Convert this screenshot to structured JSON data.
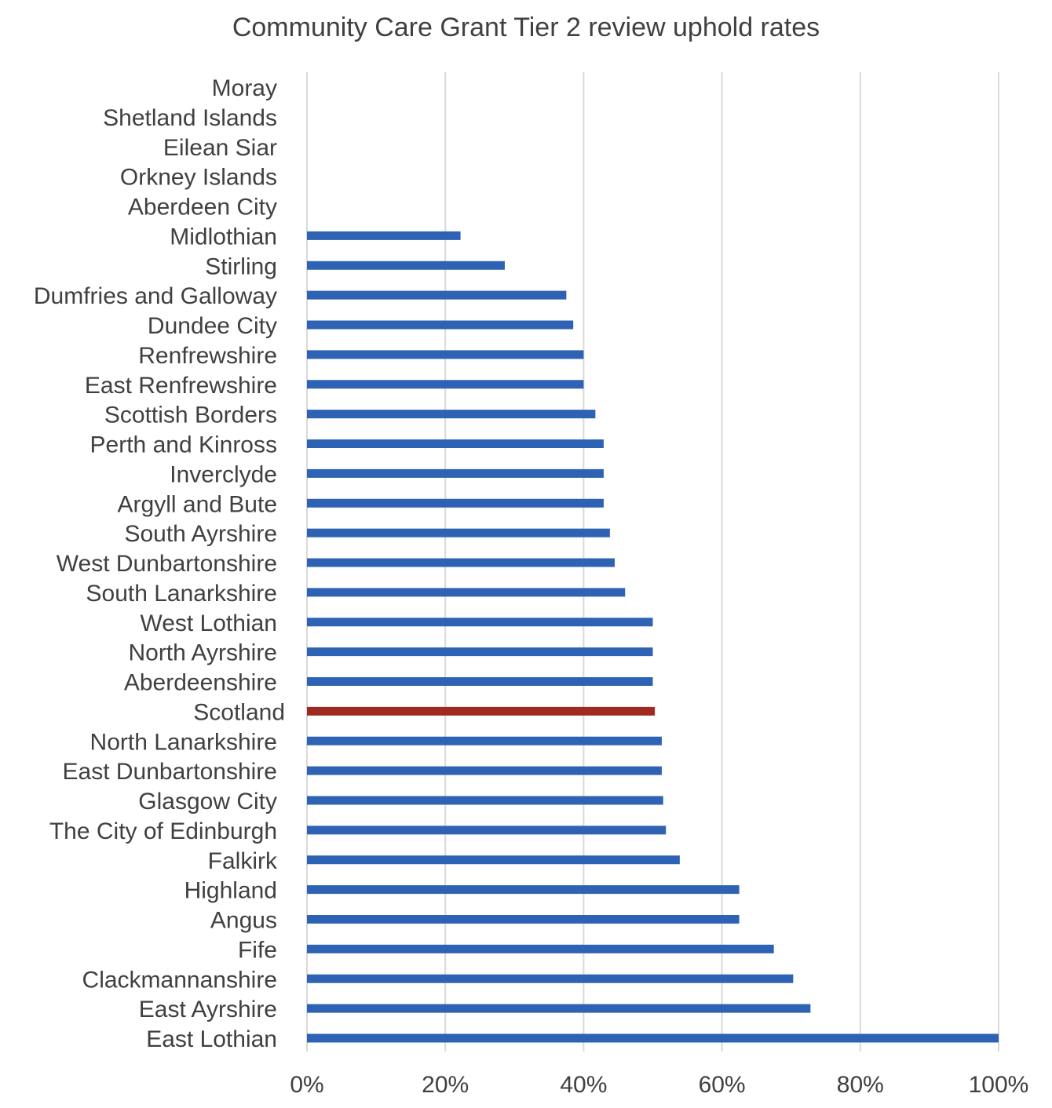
{
  "chart_data": {
    "type": "bar",
    "orientation": "horizontal",
    "title": "Community Care Grant Tier 2 review uphold rates",
    "xlabel": "",
    "ylabel": "",
    "xlim": [
      0,
      1
    ],
    "x_ticks": [
      {
        "value": 0,
        "label": "0%"
      },
      {
        "value": 0.2,
        "label": "20%"
      },
      {
        "value": 0.4,
        "label": "40%"
      },
      {
        "value": 0.6,
        "label": "60%"
      },
      {
        "value": 0.8,
        "label": "80%"
      },
      {
        "value": 1.0,
        "label": "100%"
      }
    ],
    "grid": "vertical",
    "legend": "none",
    "colors": {
      "default": "#2e62b5",
      "highlight": "#9e2a22",
      "grid": "#d9d9d9",
      "text": "#404040"
    },
    "highlight_category": "Scotland",
    "categories": [
      "Moray",
      "Shetland Islands",
      "Eilean Siar",
      "Orkney Islands",
      "Aberdeen City",
      "Midlothian",
      "Stirling",
      "Dumfries and Galloway",
      "Dundee City",
      "Renfrewshire",
      "East Renfrewshire",
      "Scottish Borders",
      "Perth and Kinross",
      "Inverclyde",
      "Argyll and Bute",
      "South Ayrshire",
      "West Dunbartonshire",
      "South Lanarkshire",
      "West Lothian",
      "North Ayrshire",
      "Aberdeenshire",
      "Scotland",
      "North Lanarkshire",
      "East Dunbartonshire",
      "Glasgow City",
      "The City of Edinburgh",
      "Falkirk",
      "Highland",
      "Angus",
      "Fife",
      "Clackmannanshire",
      "East Ayrshire",
      "East Lothian"
    ],
    "values": [
      0,
      0,
      0,
      0,
      0,
      0.222,
      0.286,
      0.375,
      0.385,
      0.4,
      0.4,
      0.417,
      0.429,
      0.429,
      0.429,
      0.438,
      0.445,
      0.46,
      0.5,
      0.5,
      0.5,
      0.503,
      0.513,
      0.513,
      0.515,
      0.519,
      0.539,
      0.625,
      0.625,
      0.675,
      0.703,
      0.728,
      1.0
    ]
  }
}
